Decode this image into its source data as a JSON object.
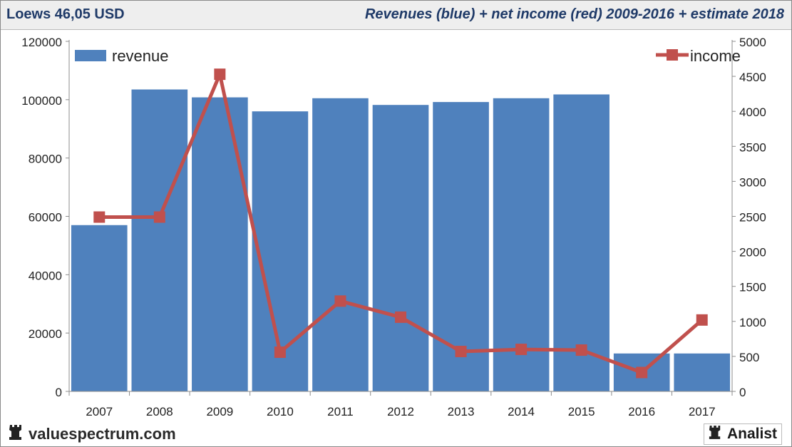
{
  "header": {
    "title_left": "Loews 46,05 USD",
    "title_right": "Revenues (blue) + net income (red) 2009-2016 + estimate 2018"
  },
  "footer": {
    "brand_left": "valuespectrum.com",
    "brand_right": "Analist"
  },
  "colors": {
    "revenue": "#4f81bd",
    "income": "#c0504d"
  },
  "chart_data": {
    "type": "bar",
    "categories": [
      "2007",
      "2008",
      "2009",
      "2010",
      "2011",
      "2012",
      "2013",
      "2014",
      "2015",
      "2016",
      "2017"
    ],
    "series": [
      {
        "name": "revenue",
        "type": "bar",
        "axis": "left",
        "values": [
          57000,
          103500,
          100800,
          96000,
          100500,
          98200,
          99200,
          100500,
          101800,
          13000,
          13000
        ]
      },
      {
        "name": "income",
        "type": "line",
        "axis": "right",
        "values": [
          2490,
          2490,
          4530,
          560,
          1290,
          1060,
          570,
          600,
          590,
          270,
          1020
        ]
      }
    ],
    "y_left": {
      "min": 0,
      "max": 120000,
      "ticks": [
        "0",
        "20000",
        "40000",
        "60000",
        "80000",
        "100000",
        "120000"
      ]
    },
    "y_right": {
      "min": 0,
      "max": 5000,
      "ticks": [
        "0",
        "500",
        "1000",
        "1500",
        "2000",
        "2500",
        "3000",
        "3500",
        "4000",
        "4500",
        "5000"
      ]
    },
    "legend": [
      {
        "label": "revenue",
        "position": "top-left"
      },
      {
        "label": "income",
        "position": "top-right"
      }
    ],
    "grid": false
  }
}
